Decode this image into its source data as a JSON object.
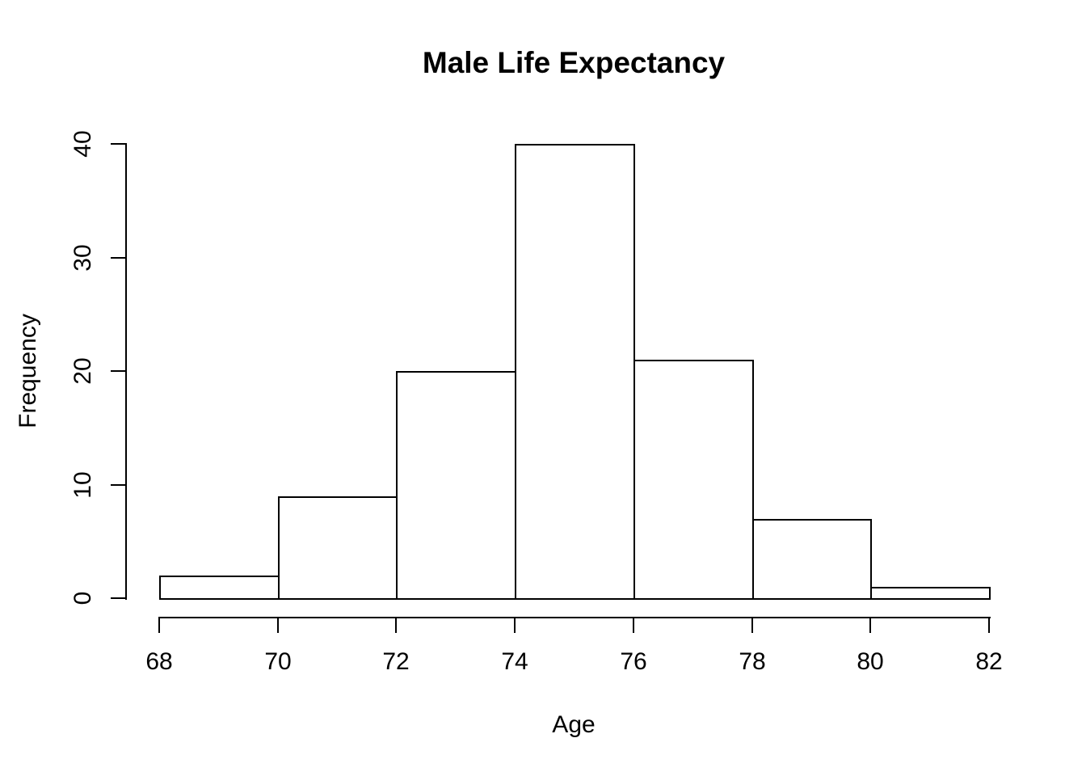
{
  "chart_data": {
    "type": "histogram",
    "title": "Male Life Expectancy",
    "xlabel": "Age",
    "ylabel": "Frequency",
    "bin_edges": [
      68,
      70,
      72,
      74,
      76,
      78,
      80,
      82
    ],
    "counts": [
      2,
      9,
      20,
      40,
      21,
      7,
      1
    ],
    "x_ticks": [
      68,
      70,
      72,
      74,
      76,
      78,
      80,
      82
    ],
    "y_ticks": [
      0,
      10,
      20,
      30,
      40
    ],
    "xlim": [
      68,
      82
    ],
    "ylim": [
      0,
      40
    ],
    "grid": false,
    "legend": false,
    "colors": {
      "background": "#ffffff",
      "bar_fill": "#ffffff",
      "stroke": "#000000",
      "text": "#000000"
    }
  }
}
